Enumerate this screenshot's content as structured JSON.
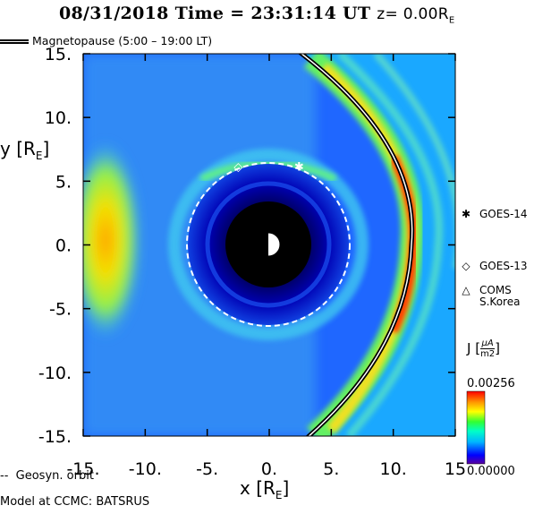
{
  "title": {
    "date": "08/31/2018",
    "time_label": "Time = 23:31:14 UT",
    "z_label": "z= 0.00R",
    "z_sub": "E"
  },
  "legend": {
    "magnetopause": "Magnetopause (5:00 – 19:00 LT)",
    "geosyn": "Geosyn. orbit"
  },
  "model_text": "Model at CCMC: BATSRUS",
  "satellites": [
    {
      "name": "GOES-14",
      "symbol": "✱",
      "x": 2.4,
      "y": 6.2
    },
    {
      "name": "GOES-13",
      "symbol": "◇",
      "x": -2.5,
      "y": 6.2
    },
    {
      "name": "COMS\nS.Korea",
      "symbol": "△"
    }
  ],
  "colorbar": {
    "label": "J",
    "unit_num": "µA",
    "unit_den": "m2",
    "max": "0.00256",
    "min": "0.00000"
  },
  "colors": {
    "background_field": "#1f67ff",
    "inner_blue": "#0000b4",
    "earth_shadow": "#000000",
    "orbit_line": "#ffffff",
    "magnetopause_line": "#000000"
  },
  "chart_data": {
    "type": "heatmap",
    "quantity": "J",
    "xlabel": "x [RE]",
    "ylabel": "y [RE]",
    "xlim": [
      -15,
      15
    ],
    "ylim": [
      -15,
      15
    ],
    "xticks": [
      "-15.",
      "-10.",
      "-5.",
      "0.",
      "5.",
      "10.",
      "15"
    ],
    "yticks": [
      "15.",
      "10.",
      "5.",
      "0.",
      "-5.",
      "-10.",
      "-15."
    ],
    "color_range": [
      0.0,
      0.00256
    ],
    "geosynchronous_orbit_radius": 6.6,
    "inner_boundary_radius": 3.5,
    "magnetopause_standoff_x": 11.2
  }
}
